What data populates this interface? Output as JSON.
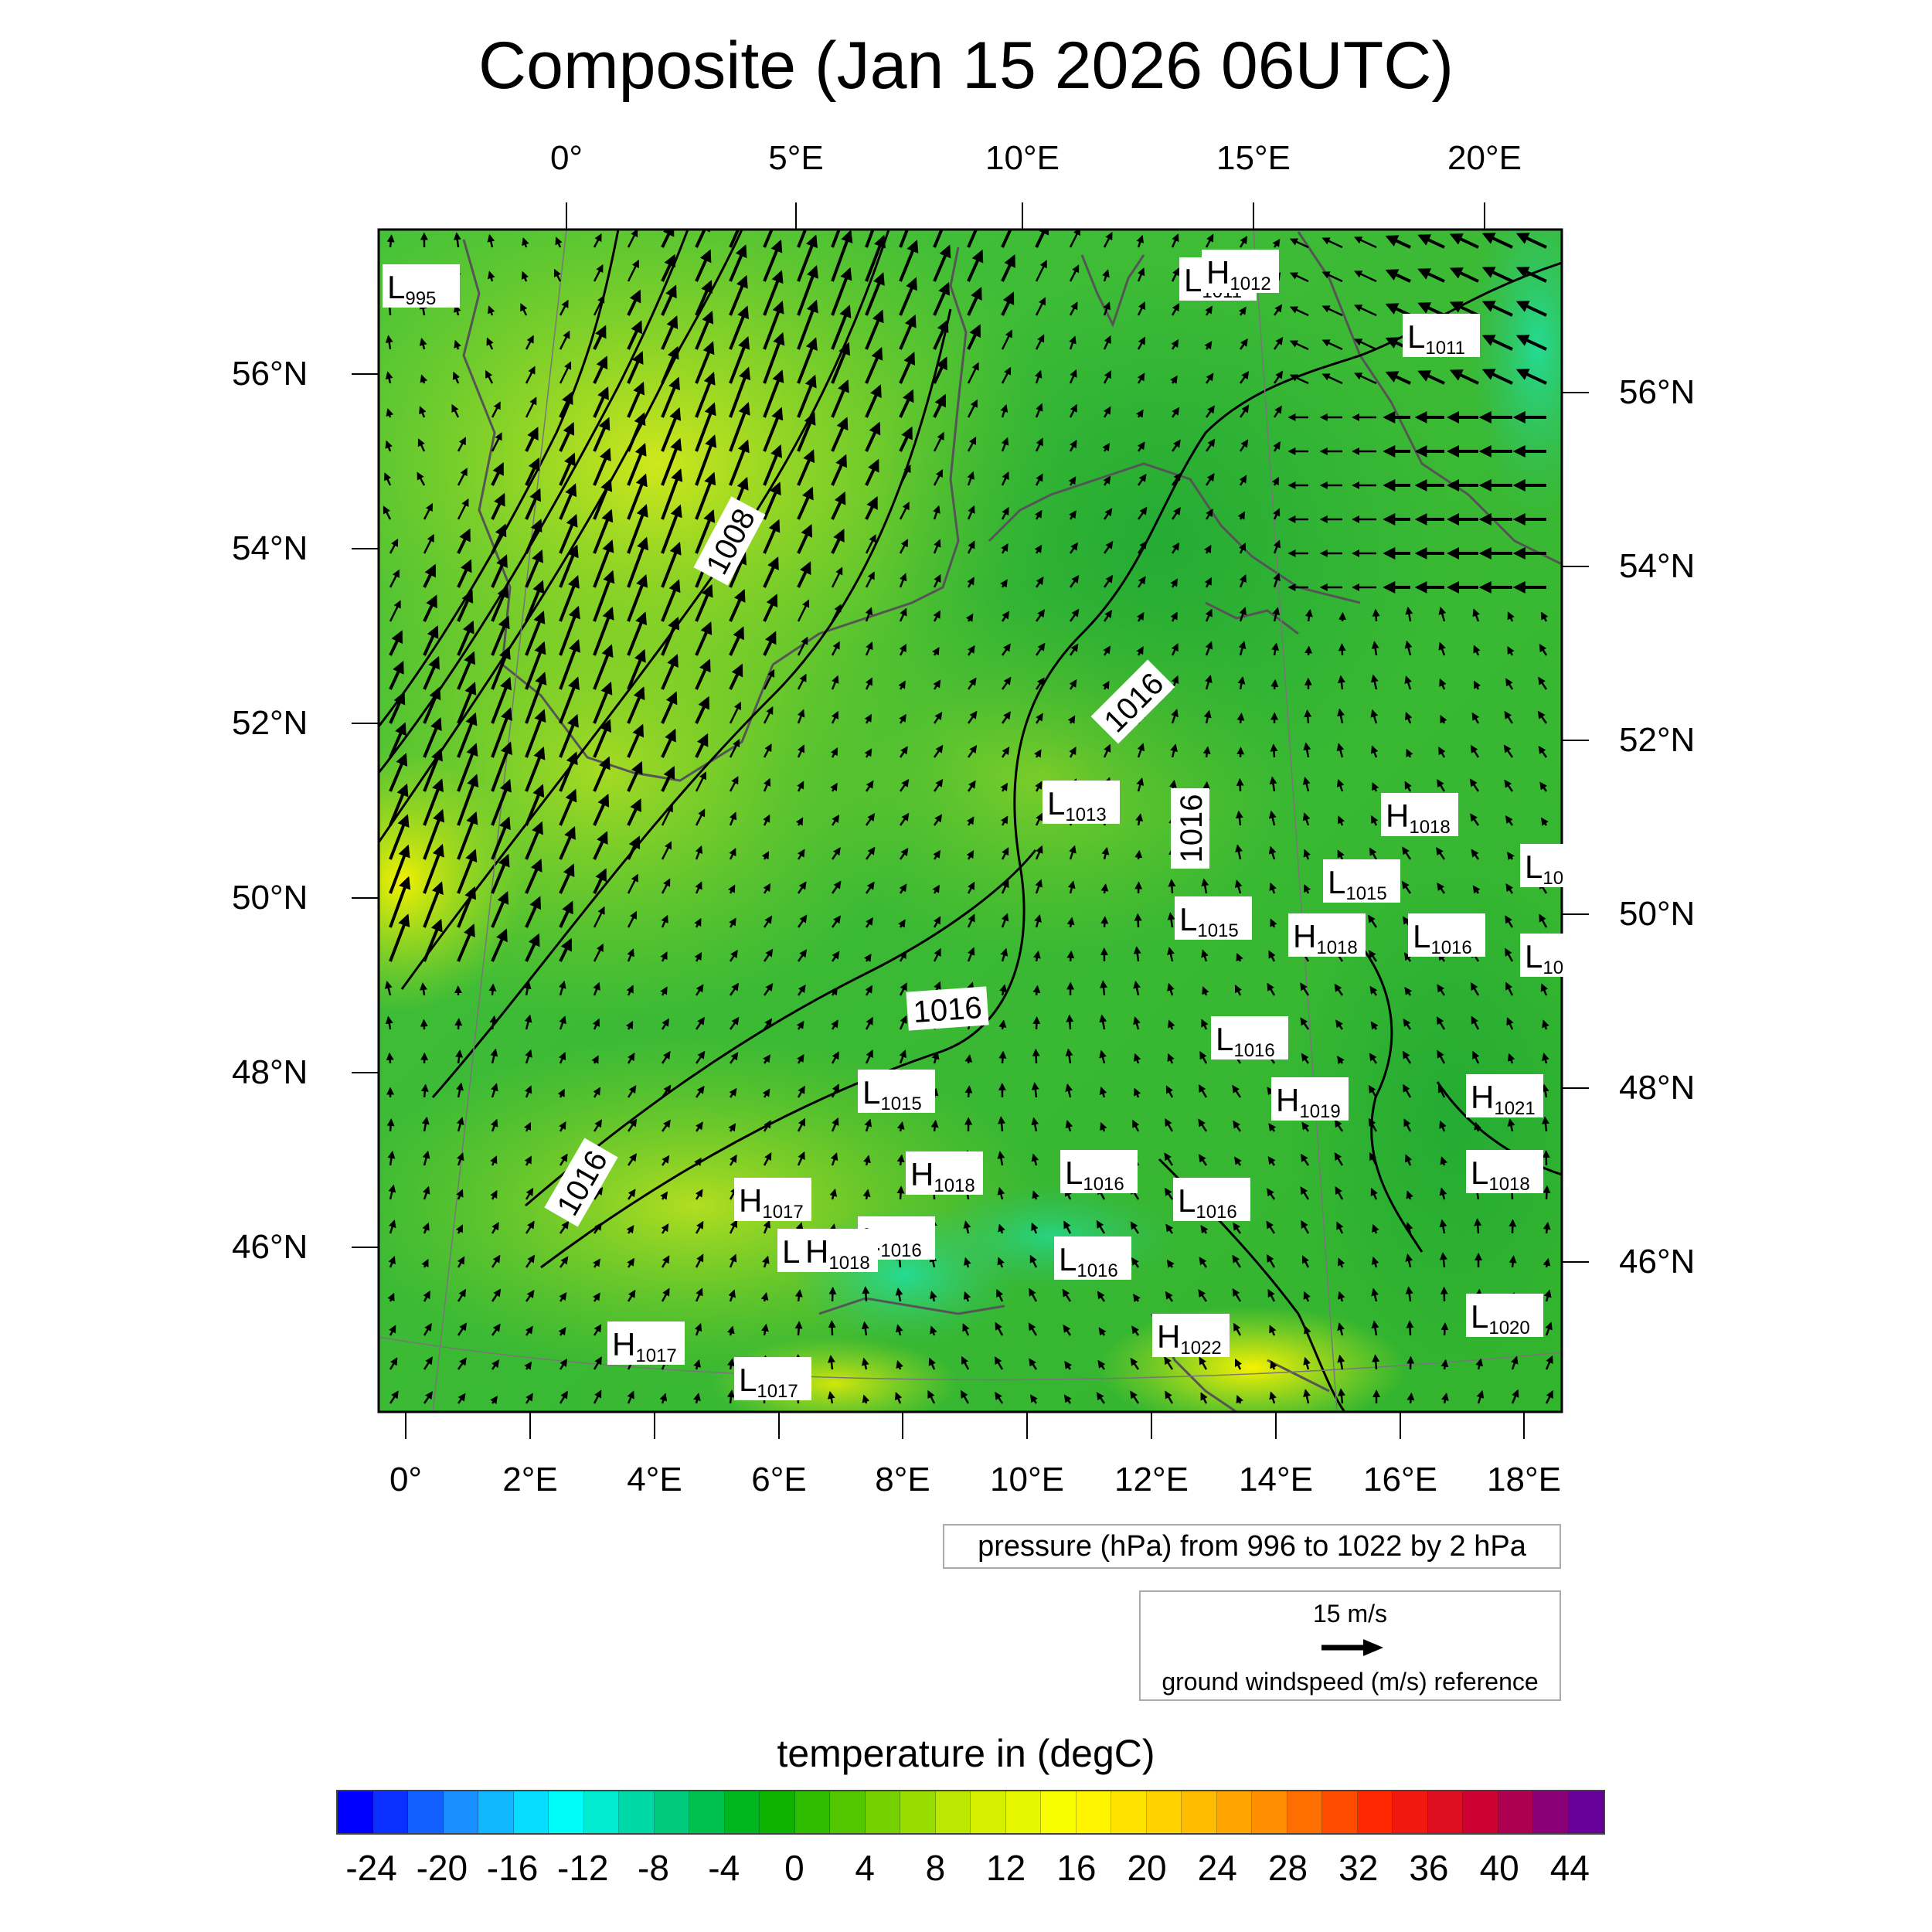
{
  "title": "Composite (Jan 15 2026 06UTC)",
  "axes": {
    "top_ticks": [
      "0°",
      "5°E",
      "10°E",
      "15°E",
      "20°E"
    ],
    "bottom_ticks": [
      "0°",
      "2°E",
      "4°E",
      "6°E",
      "8°E",
      "10°E",
      "12°E",
      "14°E",
      "16°E",
      "18°E"
    ],
    "left_ticks": [
      "56°N",
      "54°N",
      "52°N",
      "50°N",
      "48°N",
      "46°N"
    ],
    "right_ticks": [
      "56°N",
      "54°N",
      "52°N",
      "50°N",
      "48°N",
      "46°N"
    ]
  },
  "isobar_labels": [
    "1008",
    "1016",
    "1016",
    "1016",
    "1016"
  ],
  "pressure_systems": [
    {
      "type": "L",
      "value": "995"
    },
    {
      "type": "L",
      "value": "1011"
    },
    {
      "type": "H",
      "value": "1012"
    },
    {
      "type": "L",
      "value": "1011"
    },
    {
      "type": "L",
      "value": "1013"
    },
    {
      "type": "H",
      "value": "1018"
    },
    {
      "type": "L",
      "value": "1015"
    },
    {
      "type": "L",
      "value": "1015"
    },
    {
      "type": "H",
      "value": "1018"
    },
    {
      "type": "L",
      "value": "1016"
    },
    {
      "type": "L",
      "value": "1016"
    },
    {
      "type": "H",
      "value": "1019"
    },
    {
      "type": "H",
      "value": "1021"
    },
    {
      "type": "L",
      "value": "1015"
    },
    {
      "type": "H",
      "value": "1018"
    },
    {
      "type": "L",
      "value": "1016"
    },
    {
      "type": "L",
      "value": "1018"
    },
    {
      "type": "H",
      "value": "1017"
    },
    {
      "type": "L",
      "value": "1016"
    },
    {
      "type": "L",
      "value": "1016"
    },
    {
      "type": "L",
      "value": ""
    },
    {
      "type": "H",
      "value": "1018"
    },
    {
      "type": "L",
      "value": "1016"
    },
    {
      "type": "H",
      "value": "1017"
    },
    {
      "type": "H",
      "value": "1022"
    },
    {
      "type": "L",
      "value": "1020"
    },
    {
      "type": "L",
      "value": "1017"
    },
    {
      "type": "L",
      "value": "10"
    },
    {
      "type": "L",
      "value": "10"
    }
  ],
  "pressure_info": "pressure (hPa) from 996 to 1022 by 2 hPa",
  "wind_reference": {
    "speed_label": "15 m/s",
    "caption": "ground windspeed (m/s) reference"
  },
  "colorbar": {
    "title": "temperature in (degC)",
    "labels": [
      "-24",
      "-20",
      "-16",
      "-12",
      "-8",
      "-4",
      "0",
      "4",
      "8",
      "12",
      "16",
      "20",
      "24",
      "28",
      "32",
      "36",
      "40",
      "44"
    ],
    "min": -26,
    "max": 46,
    "step": 2,
    "colors_stops": [
      "#0000ff",
      "#1a8cff",
      "#00ffff",
      "#00cc88",
      "#00b000",
      "#66cc00",
      "#ccee00",
      "#ffff00",
      "#ffcc00",
      "#ff8800",
      "#ff2200",
      "#cc0033",
      "#660099"
    ]
  },
  "map_colors": {
    "land_mid": "#3cc43c",
    "land_yellow": "#c8e61e",
    "cold": "#22cc88",
    "warm": "#f0f000"
  }
}
